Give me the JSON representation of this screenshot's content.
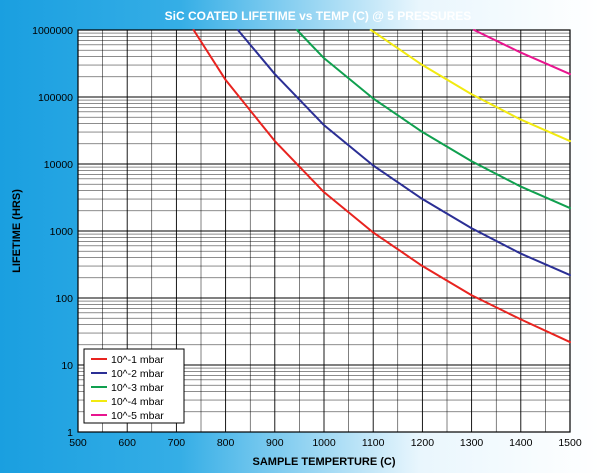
{
  "chart_data": {
    "type": "line",
    "title": "SiC COATED LIFETIME vs TEMP (C) @ 5 PRESSURES",
    "xlabel": "SAMPLE TEMPERTURE (C)",
    "ylabel": "LIFETIME (HRS)",
    "xlim": [
      500,
      1500
    ],
    "ylim": [
      1,
      1000000
    ],
    "yscale": "log",
    "grid": true,
    "legend_position": "bottom-left",
    "x_ticks": [
      "500",
      "600",
      "700",
      "800",
      "900",
      "1000",
      "1100",
      "1200",
      "1300",
      "1400",
      "1500"
    ],
    "y_ticks": [
      "1",
      "10",
      "100",
      "1000",
      "10000",
      "100000",
      "1000000"
    ],
    "series": [
      {
        "name": "10^-1 mbar",
        "color": "#e8231f",
        "x": [
          735,
          800,
          900,
          1000,
          1100,
          1200,
          1300,
          1400,
          1500
        ],
        "y": [
          1000000,
          180000,
          22000,
          3800,
          950,
          300,
          110,
          48,
          22
        ]
      },
      {
        "name": "10^-2 mbar",
        "color": "#2b2f95",
        "x": [
          825,
          900,
          1000,
          1100,
          1200,
          1300,
          1400,
          1500
        ],
        "y": [
          1000000,
          220000,
          38000,
          9500,
          3000,
          1100,
          460,
          220
        ]
      },
      {
        "name": "10^-3 mbar",
        "color": "#10a04f",
        "x": [
          945,
          1000,
          1100,
          1200,
          1300,
          1400,
          1500
        ],
        "y": [
          1000000,
          380000,
          95000,
          30000,
          11000,
          4600,
          2200
        ]
      },
      {
        "name": "10^-4 mbar",
        "color": "#f2ea10",
        "x": [
          1095,
          1100,
          1200,
          1300,
          1400,
          1500
        ],
        "y": [
          1000000,
          950000,
          300000,
          110000,
          46000,
          22000
        ]
      },
      {
        "name": "10^-5 mbar",
        "color": "#e8158f",
        "x": [
          1305,
          1400,
          1500
        ],
        "y": [
          1000000,
          460000,
          220000
        ]
      }
    ]
  }
}
